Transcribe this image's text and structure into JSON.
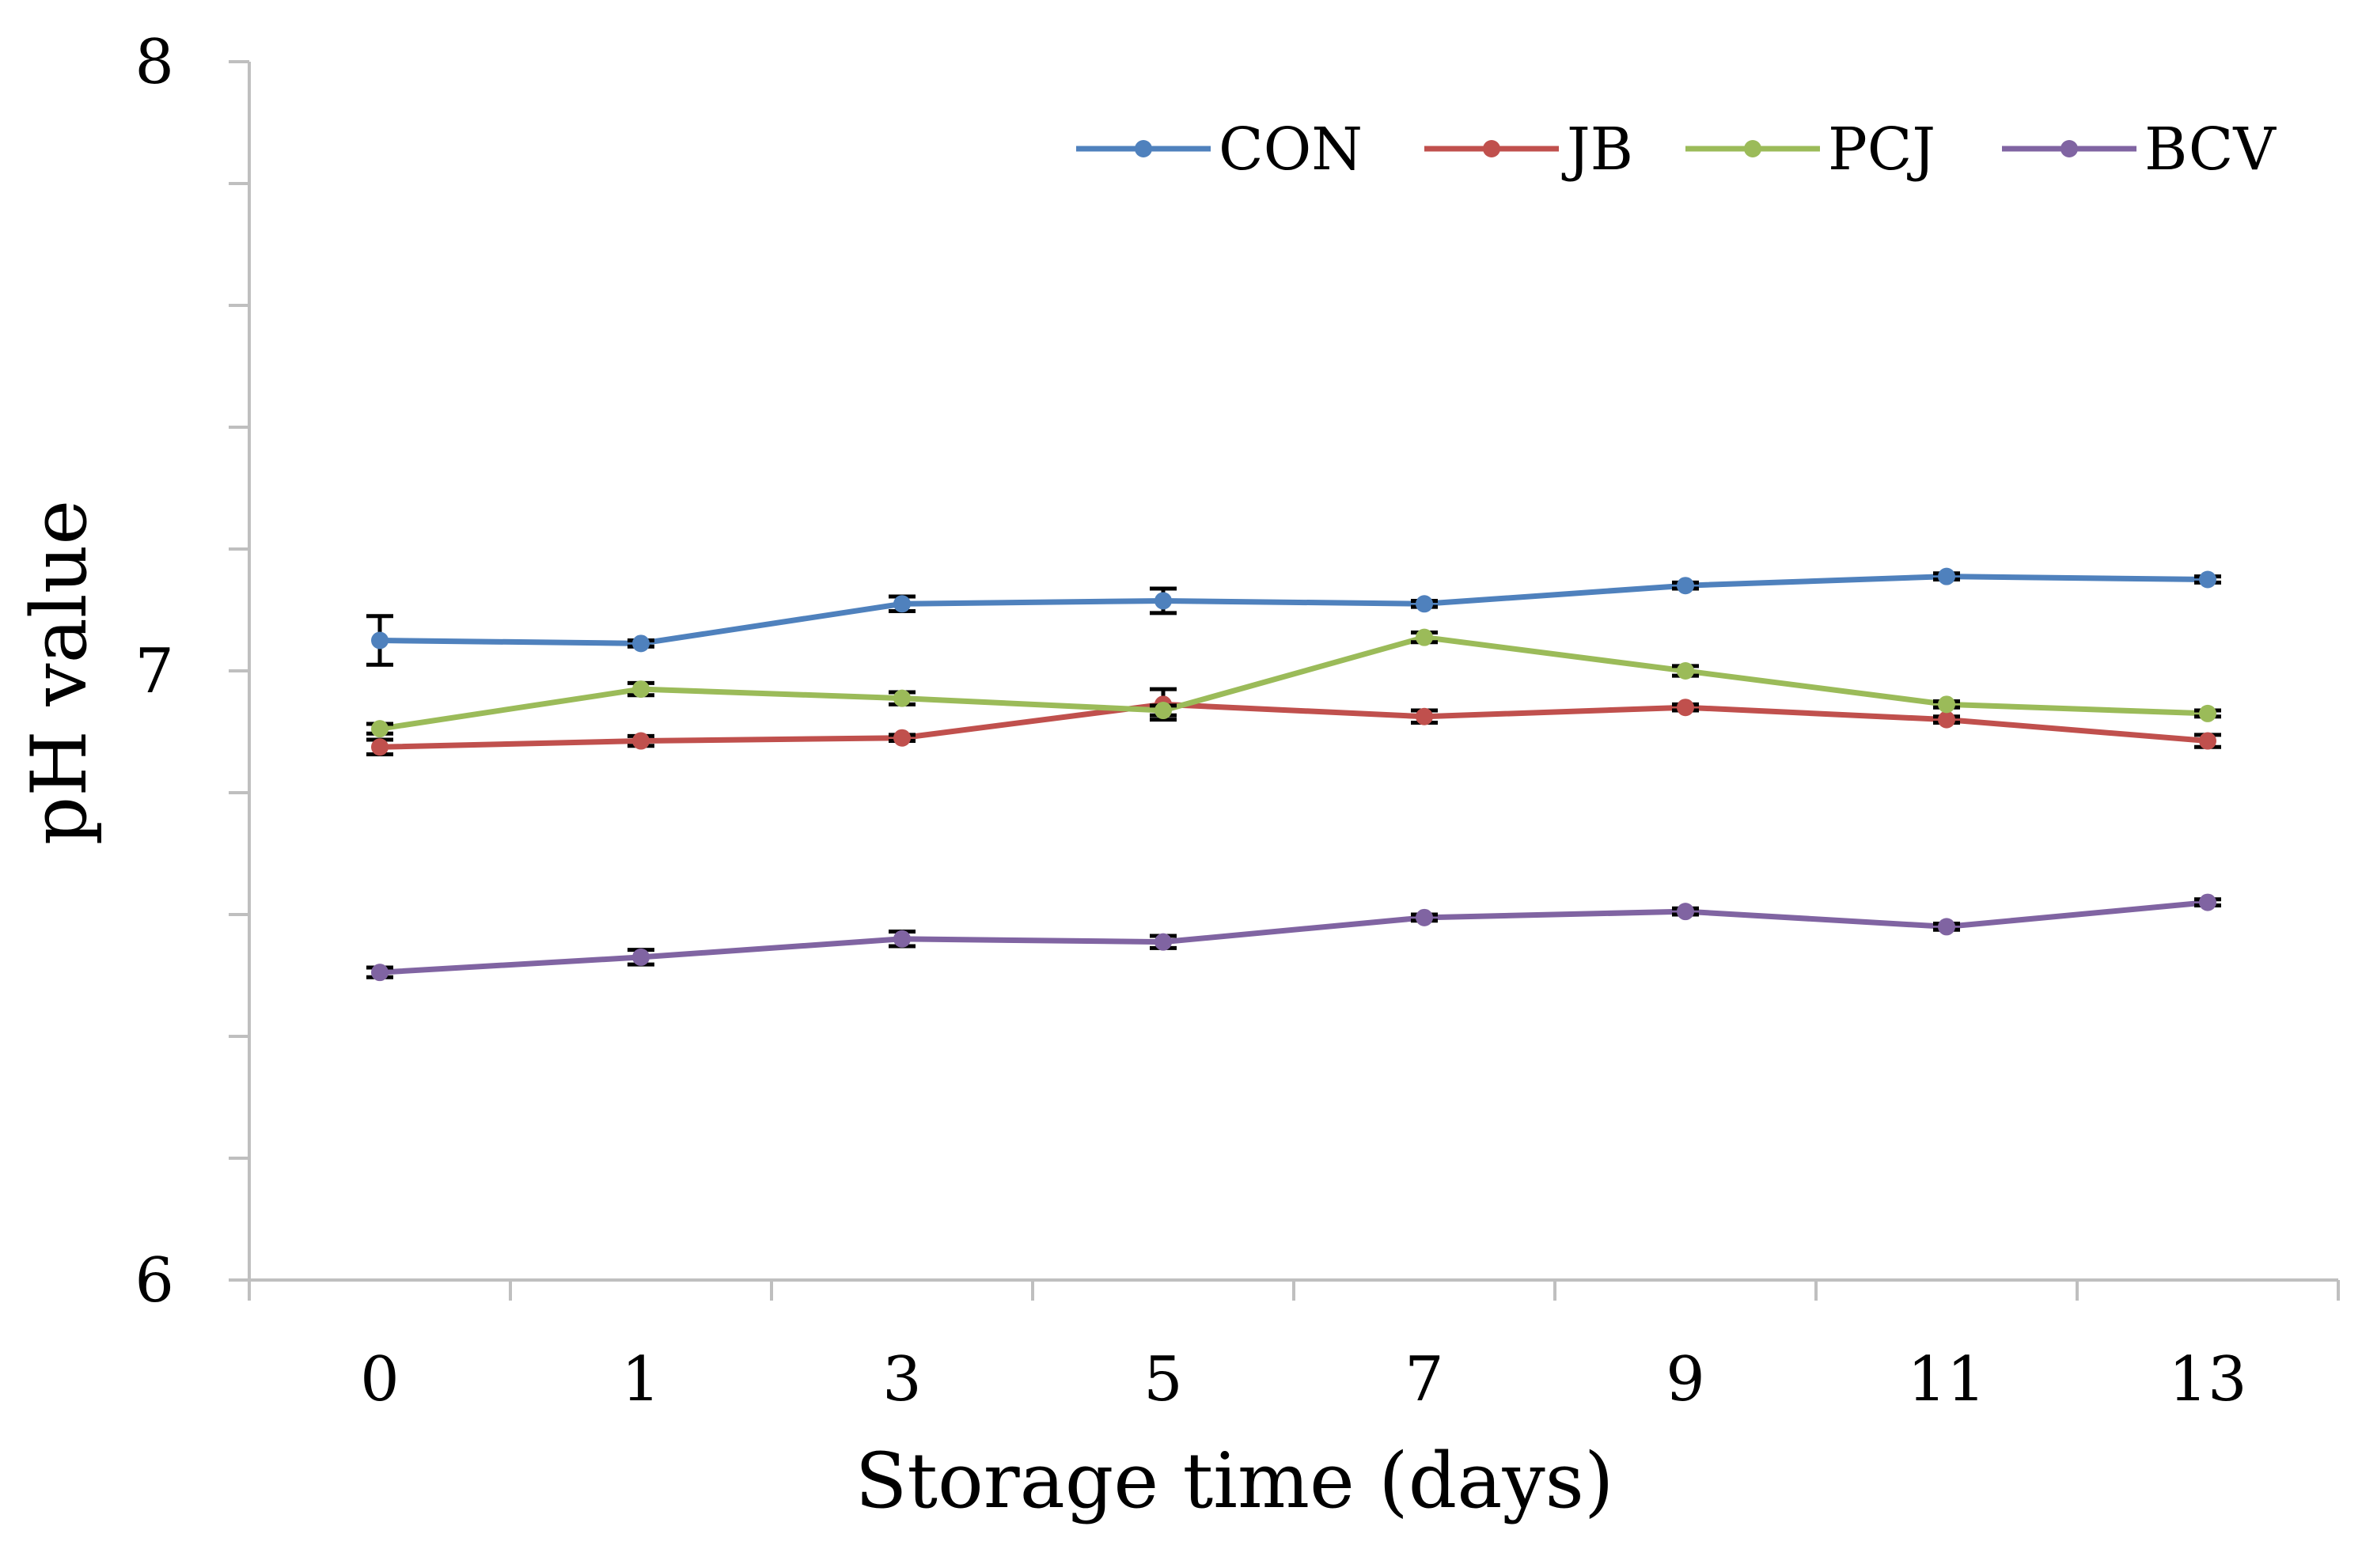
{
  "chart_data": {
    "type": "line",
    "title": "",
    "xlabel": "Storage time (days)",
    "ylabel": "pH value",
    "categories": [
      "0",
      "1",
      "3",
      "5",
      "7",
      "9",
      "11",
      "13"
    ],
    "ylim": [
      6,
      8
    ],
    "yticks": [
      "6",
      "7",
      "8"
    ],
    "y_minor_step": 0.2,
    "grid": false,
    "legend_position": "top-right",
    "series": [
      {
        "name": "CON",
        "color": "#4f81bd",
        "values": [
          7.05,
          7.045,
          7.11,
          7.115,
          7.11,
          7.14,
          7.155,
          7.15
        ],
        "errors": [
          0.04,
          0.005,
          0.012,
          0.02,
          0.005,
          0.005,
          0.005,
          0.005
        ]
      },
      {
        "name": "JB",
        "color": "#c0504d",
        "values": [
          6.875,
          6.885,
          6.89,
          6.945,
          6.925,
          6.94,
          6.92,
          6.885
        ],
        "errors": [
          0.012,
          0.008,
          0.005,
          0.025,
          0.01,
          0.005,
          0.005,
          0.01
        ]
      },
      {
        "name": "PCJ",
        "color": "#9bbb59",
        "values": [
          6.905,
          6.97,
          6.955,
          6.935,
          7.055,
          7.0,
          6.945,
          6.93
        ],
        "errors": [
          0.008,
          0.01,
          0.01,
          0.008,
          0.008,
          0.008,
          0.005,
          0.005
        ]
      },
      {
        "name": "BCV",
        "color": "#8064a2",
        "values": [
          6.505,
          6.53,
          6.56,
          6.555,
          6.595,
          6.605,
          6.58,
          6.62
        ],
        "errors": [
          0.008,
          0.012,
          0.012,
          0.01,
          0.005,
          0.005,
          0.005,
          0.005
        ]
      }
    ]
  }
}
